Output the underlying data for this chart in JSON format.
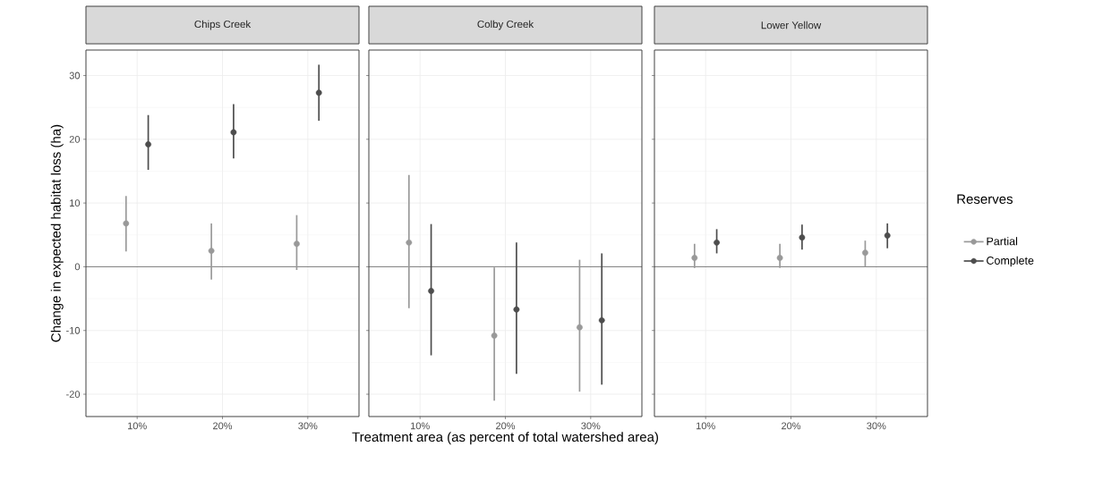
{
  "chart_data": [
    {
      "type": "scatter",
      "title": "Chips Creek",
      "ylabel": "Change in expected habitat loss (ha)",
      "categories": [
        "10%",
        "20%",
        "30%"
      ],
      "ylim": [
        -23.5,
        34
      ],
      "yticks": [
        -20,
        -10,
        0,
        10,
        20,
        30
      ],
      "grid": true,
      "marker": "circle",
      "legend": false,
      "ref_lines": [
        {
          "axis": "y",
          "value": 0
        }
      ],
      "series": [
        {
          "color": "#999999",
          "values": [
            6.8,
            2.5,
            3.6
          ],
          "errors": [
            [
              2.4,
              11.1
            ],
            [
              -2.0,
              6.8
            ],
            [
              -0.5,
              8.1
            ]
          ]
        },
        {
          "color": "#4d4d4d",
          "values": [
            19.2,
            21.1,
            27.3
          ],
          "errors": [
            [
              15.2,
              23.8
            ],
            [
              17.0,
              25.5
            ],
            [
              22.9,
              31.7
            ]
          ]
        }
      ]
    },
    {
      "type": "scatter",
      "title": "Colby Creek",
      "xlabel": "Treatment area (as percent of total watershed area)",
      "categories": [
        "10%",
        "20%",
        "30%"
      ],
      "ylim": [
        -23.5,
        34
      ],
      "yticks": [
        -20,
        -10,
        0,
        10,
        20,
        30
      ],
      "grid": true,
      "marker": "circle",
      "legend": false,
      "tick_labels": "x",
      "ref_lines": [
        {
          "axis": "y",
          "value": 0
        }
      ],
      "series": [
        {
          "color": "#999999",
          "values": [
            3.8,
            -10.8,
            -9.5
          ],
          "errors": [
            [
              -6.5,
              14.4
            ],
            [
              -21.0,
              -0.1
            ],
            [
              -19.6,
              1.1
            ]
          ]
        },
        {
          "color": "#4d4d4d",
          "values": [
            -3.8,
            -6.7,
            -8.4
          ],
          "errors": [
            [
              -13.9,
              6.7
            ],
            [
              -16.8,
              3.8
            ],
            [
              -18.5,
              2.1
            ]
          ]
        }
      ]
    },
    {
      "type": "scatter",
      "title": "Lower Yellow",
      "legend_title": "Reserves",
      "categories": [
        "10%",
        "20%",
        "30%"
      ],
      "ylim": [
        -23.5,
        34
      ],
      "yticks": [
        -20,
        -10,
        0,
        10,
        20,
        30
      ],
      "grid": true,
      "marker": "circle",
      "legend": "right",
      "tick_labels": "x",
      "ref_lines": [
        {
          "axis": "y",
          "value": 0
        }
      ],
      "series": [
        {
          "name": "Partial",
          "color": "#999999",
          "values": [
            1.4,
            1.4,
            2.2
          ],
          "errors": [
            [
              -0.2,
              3.6
            ],
            [
              -0.2,
              3.6
            ],
            [
              0.0,
              4.1
            ]
          ]
        },
        {
          "name": "Complete",
          "color": "#4d4d4d",
          "values": [
            3.8,
            4.6,
            4.9
          ],
          "errors": [
            [
              2.1,
              5.9
            ],
            [
              2.7,
              6.6
            ],
            [
              2.9,
              6.8
            ]
          ]
        }
      ]
    }
  ]
}
